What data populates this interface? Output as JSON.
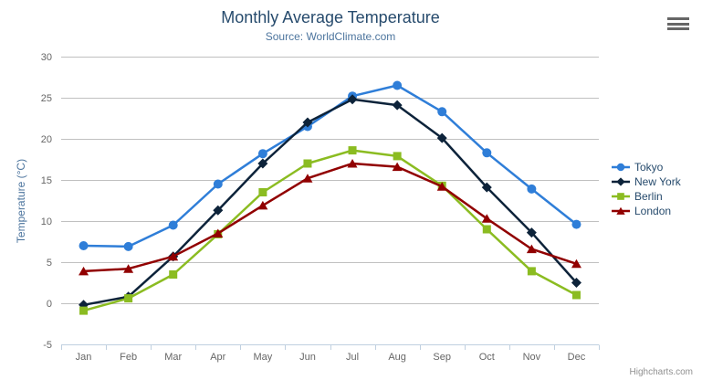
{
  "header": {
    "title": "Monthly Average Temperature",
    "subtitle": "Source: WorldClimate.com"
  },
  "credits": "Highcharts.com",
  "menu_button_label": "chart context menu",
  "theme": {
    "title_color": "#274b6d",
    "subtitle_color": "#4d759e",
    "axis_title_color": "#4d759e",
    "axis_label_color": "#666666",
    "grid_color": "#c0c0c0",
    "axis_line_color": "#c0d0e0",
    "legend_text_color": "#274b6d",
    "credits_color": "#909090",
    "background_color": "#ffffff"
  },
  "chart_data": {
    "type": "line",
    "title": "Monthly Average Temperature",
    "subtitle": "Source: WorldClimate.com",
    "xlabel": "",
    "ylabel": "Temperature (°C)",
    "ylim": [
      -5,
      30
    ],
    "yticks": [
      -5,
      0,
      5,
      10,
      15,
      20,
      25,
      30
    ],
    "grid": true,
    "legend_position": "right",
    "categories": [
      "Jan",
      "Feb",
      "Mar",
      "Apr",
      "May",
      "Jun",
      "Jul",
      "Aug",
      "Sep",
      "Oct",
      "Nov",
      "Dec"
    ],
    "series": [
      {
        "name": "Tokyo",
        "color": "#2f7ed8",
        "marker": "circle",
        "values": [
          7.0,
          6.9,
          9.5,
          14.5,
          18.2,
          21.5,
          25.2,
          26.5,
          23.3,
          18.3,
          13.9,
          9.6
        ]
      },
      {
        "name": "New York",
        "color": "#0d233a",
        "marker": "diamond",
        "values": [
          -0.2,
          0.8,
          5.7,
          11.3,
          17.0,
          22.0,
          24.8,
          24.1,
          20.1,
          14.1,
          8.6,
          2.5
        ]
      },
      {
        "name": "Berlin",
        "color": "#8bbc21",
        "marker": "square",
        "values": [
          -0.9,
          0.6,
          3.5,
          8.4,
          13.5,
          17.0,
          18.6,
          17.9,
          14.3,
          9.0,
          3.9,
          1.0
        ]
      },
      {
        "name": "London",
        "color": "#910000",
        "marker": "triangle",
        "values": [
          3.9,
          4.2,
          5.7,
          8.5,
          11.9,
          15.2,
          17.0,
          16.6,
          14.2,
          10.3,
          6.6,
          4.8
        ]
      }
    ]
  }
}
